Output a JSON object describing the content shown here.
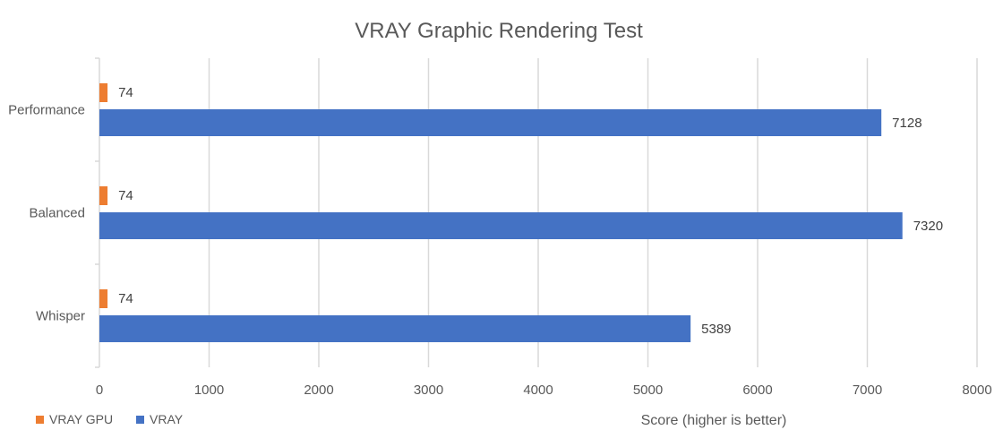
{
  "chart_data": {
    "type": "bar",
    "orientation": "horizontal",
    "title": "VRAY Graphic Rendering Test",
    "xlabel": "Score (higher is better)",
    "ylabel": "",
    "xlim": [
      0,
      8000
    ],
    "xticks": [
      0,
      1000,
      2000,
      3000,
      4000,
      5000,
      6000,
      7000,
      8000
    ],
    "categories": [
      "Performance",
      "Balanced",
      "Whisper"
    ],
    "series": [
      {
        "name": "VRAY GPU",
        "color": "#ed7d31",
        "values": [
          74,
          74,
          74
        ]
      },
      {
        "name": "VRAY",
        "color": "#4472c4",
        "values": [
          7128,
          7320,
          5389
        ]
      }
    ],
    "grid": true,
    "legend": "bottom-left"
  }
}
